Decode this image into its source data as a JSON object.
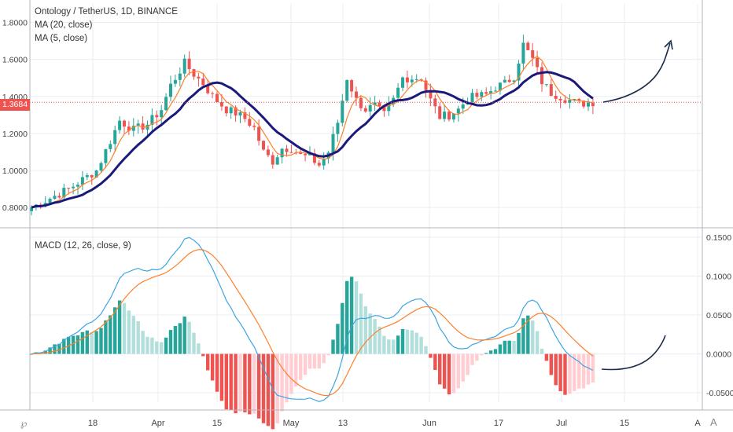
{
  "chart_title": "Ontology / TetherUS, 1D, BINANCE",
  "legend": {
    "ma20": "MA (20, close)",
    "ma5": "MA (5, close)",
    "macd": "MACD (12, 26, close, 9)"
  },
  "last_price_label": "1.3684",
  "icons": {
    "left_bottom": "tv-logo-icon",
    "right_bottom": "settings-a-icon"
  },
  "colors": {
    "up": "#26a69a",
    "down": "#ef5350",
    "ma20": "#1b1a7a",
    "ma5": "#ff7f2a",
    "macd_line": "#3da5e0",
    "signal_line": "#ff7f2a",
    "hist_up_strong": "#26a69a",
    "hist_up_weak": "#b2dfdb",
    "hist_down_strong": "#ef5350",
    "hist_down_weak": "#ffcdd2",
    "grid": "#e9edf2",
    "drawing": "#1b2b4a"
  },
  "chart_data": [
    {
      "type": "candlestick",
      "title": "Ontology / TetherUS, 1D, BINANCE",
      "y_ticks": [
        "0.8000",
        "1.0000",
        "1.2000",
        "1.4000",
        "1.6000",
        "1.8000"
      ],
      "ylim": [
        0.72,
        1.9
      ],
      "x_ticks": [
        "18",
        "Apr",
        "15",
        "May",
        "13",
        "Jun",
        "17",
        "Jul",
        "15",
        "A"
      ],
      "series": [
        {
          "name": "MA (20, close)"
        },
        {
          "name": "MA (5, close)"
        }
      ],
      "last_price": 1.3684,
      "drawing": "hand-drawn upward arrow projection after last candle"
    },
    {
      "type": "macd",
      "title": "MACD (12, 26, close, 9)",
      "y_ticks": [
        "-0.0500",
        "0.0000",
        "0.0500",
        "0.1000",
        "0.1500"
      ],
      "ylim": [
        -0.062,
        0.155
      ],
      "drawing": "hand-drawn upward curve projection"
    }
  ]
}
